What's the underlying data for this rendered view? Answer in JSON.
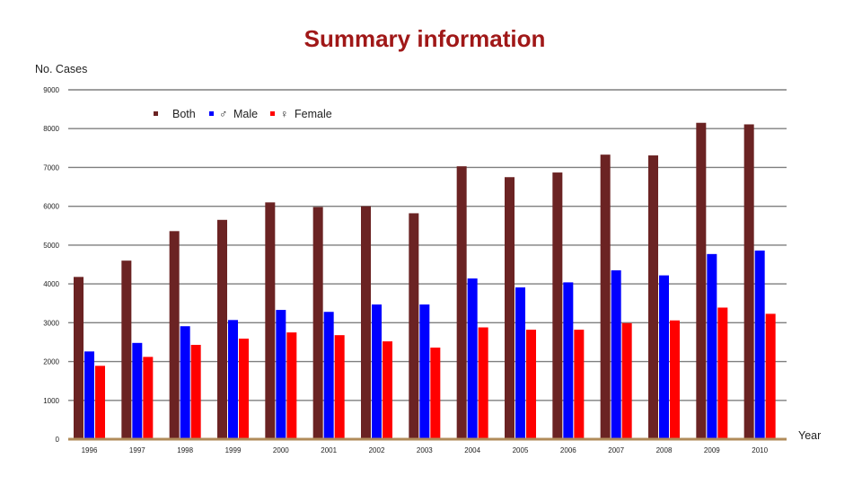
{
  "chart_data": {
    "type": "bar",
    "title": "Summary information",
    "xlabel": "Year",
    "ylabel": "No. Cases",
    "ylim": [
      0,
      9000
    ],
    "yticks": [
      0,
      1000,
      2000,
      3000,
      4000,
      5000,
      6000,
      7000,
      8000,
      9000
    ],
    "grid": true,
    "legend_position": "top",
    "categories": [
      "1996",
      "1997",
      "1998",
      "1999",
      "2000",
      "2001",
      "2002",
      "2003",
      "2004",
      "2005",
      "2006",
      "2007",
      "2008",
      "2009",
      "2010"
    ],
    "series": [
      {
        "name": "Both",
        "legend_glyph": "",
        "color": "#6b2323",
        "values": [
          4180,
          4600,
          5360,
          5650,
          6100,
          5980,
          6000,
          5820,
          7030,
          6750,
          6870,
          7330,
          7310,
          8150,
          8110
        ]
      },
      {
        "name": "Male",
        "legend_glyph": "♂",
        "color": "#0000ff",
        "values": [
          2260,
          2480,
          2910,
          3070,
          3330,
          3280,
          3470,
          3470,
          4140,
          3910,
          4040,
          4350,
          4220,
          4770,
          4860
        ]
      },
      {
        "name": "Female",
        "legend_glyph": "♀",
        "color": "#ff0000",
        "values": [
          1890,
          2120,
          2430,
          2590,
          2750,
          2680,
          2520,
          2360,
          2880,
          2820,
          2820,
          2990,
          3060,
          3390,
          3230
        ]
      }
    ]
  }
}
